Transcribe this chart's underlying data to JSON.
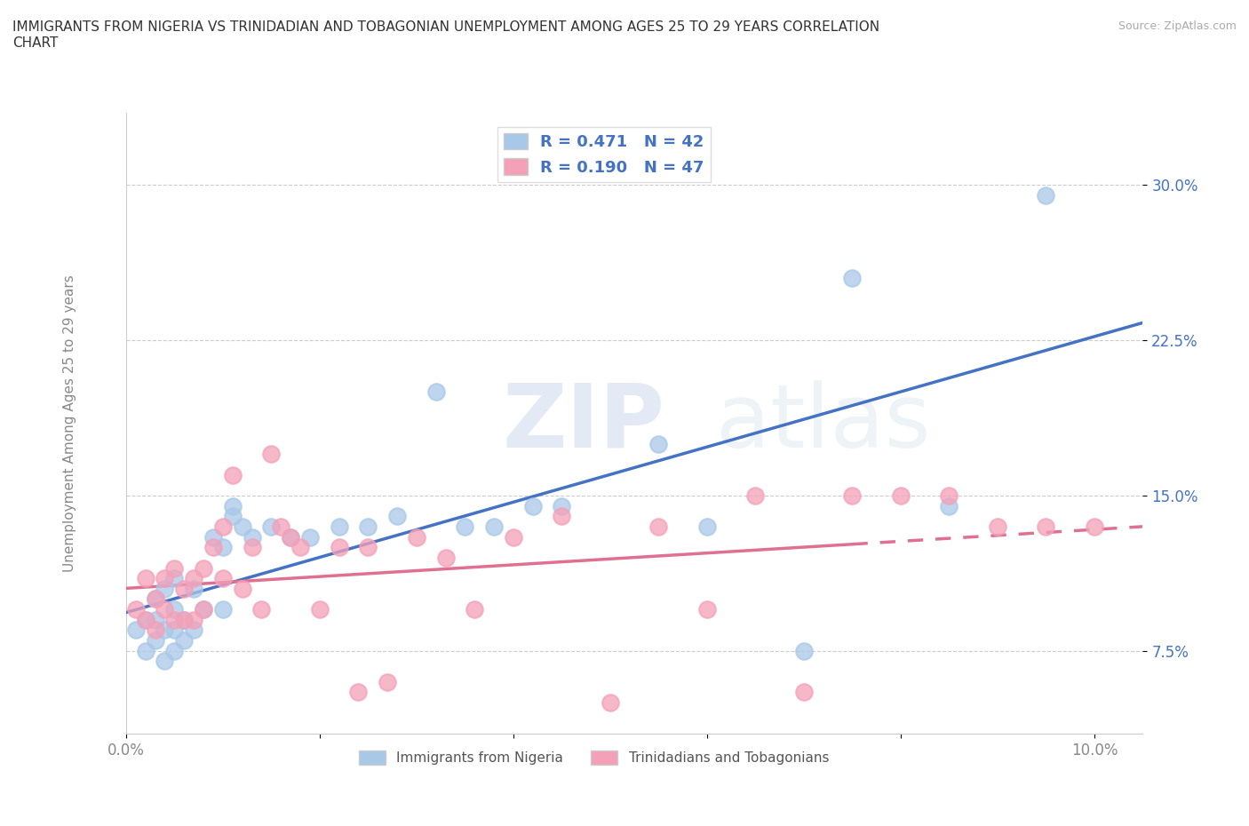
{
  "title": "IMMIGRANTS FROM NIGERIA VS TRINIDADIAN AND TOBAGONIAN UNEMPLOYMENT AMONG AGES 25 TO 29 YEARS CORRELATION\nCHART",
  "source": "Source: ZipAtlas.com",
  "ylabel": "Unemployment Among Ages 25 to 29 years",
  "xlim": [
    0.0,
    0.105
  ],
  "ylim": [
    0.035,
    0.335
  ],
  "yticks": [
    0.075,
    0.15,
    0.225,
    0.3
  ],
  "ytick_labels": [
    "7.5%",
    "15.0%",
    "22.5%",
    "30.0%"
  ],
  "xticks": [
    0.0,
    0.02,
    0.04,
    0.06,
    0.08,
    0.1
  ],
  "xtick_labels": [
    "0.0%",
    "",
    "",
    "",
    "",
    "10.0%"
  ],
  "nigeria_color": "#a8c8e8",
  "trinidad_color": "#f4a0b8",
  "nigeria_line_color": "#4472c4",
  "trinidad_line_color": "#e07090",
  "nigeria_R": 0.471,
  "nigeria_N": 42,
  "trinidad_R": 0.19,
  "trinidad_N": 47,
  "legend_text_color": "#4472c4",
  "nigeria_x": [
    0.001,
    0.002,
    0.002,
    0.003,
    0.003,
    0.003,
    0.004,
    0.004,
    0.004,
    0.005,
    0.005,
    0.005,
    0.005,
    0.006,
    0.006,
    0.007,
    0.007,
    0.008,
    0.009,
    0.01,
    0.01,
    0.011,
    0.011,
    0.012,
    0.013,
    0.015,
    0.017,
    0.019,
    0.022,
    0.025,
    0.028,
    0.032,
    0.035,
    0.038,
    0.042,
    0.045,
    0.055,
    0.06,
    0.07,
    0.075,
    0.085,
    0.095
  ],
  "nigeria_y": [
    0.085,
    0.075,
    0.09,
    0.08,
    0.09,
    0.1,
    0.07,
    0.085,
    0.105,
    0.075,
    0.085,
    0.095,
    0.11,
    0.08,
    0.09,
    0.085,
    0.105,
    0.095,
    0.13,
    0.095,
    0.125,
    0.14,
    0.145,
    0.135,
    0.13,
    0.135,
    0.13,
    0.13,
    0.135,
    0.135,
    0.14,
    0.2,
    0.135,
    0.135,
    0.145,
    0.145,
    0.175,
    0.135,
    0.075,
    0.255,
    0.145,
    0.295
  ],
  "trinidad_x": [
    0.001,
    0.002,
    0.002,
    0.003,
    0.003,
    0.004,
    0.004,
    0.005,
    0.005,
    0.006,
    0.006,
    0.007,
    0.007,
    0.008,
    0.008,
    0.009,
    0.01,
    0.01,
    0.011,
    0.012,
    0.013,
    0.014,
    0.015,
    0.016,
    0.017,
    0.018,
    0.02,
    0.022,
    0.024,
    0.025,
    0.027,
    0.03,
    0.033,
    0.036,
    0.04,
    0.045,
    0.05,
    0.055,
    0.06,
    0.065,
    0.07,
    0.075,
    0.08,
    0.085,
    0.09,
    0.095,
    0.1
  ],
  "trinidad_y": [
    0.095,
    0.09,
    0.11,
    0.085,
    0.1,
    0.095,
    0.11,
    0.09,
    0.115,
    0.09,
    0.105,
    0.09,
    0.11,
    0.095,
    0.115,
    0.125,
    0.11,
    0.135,
    0.16,
    0.105,
    0.125,
    0.095,
    0.17,
    0.135,
    0.13,
    0.125,
    0.095,
    0.125,
    0.055,
    0.125,
    0.06,
    0.13,
    0.12,
    0.095,
    0.13,
    0.14,
    0.05,
    0.135,
    0.095,
    0.15,
    0.055,
    0.15,
    0.15,
    0.15,
    0.135,
    0.135,
    0.135
  ],
  "background_color": "#ffffff",
  "grid_color": "#cccccc"
}
